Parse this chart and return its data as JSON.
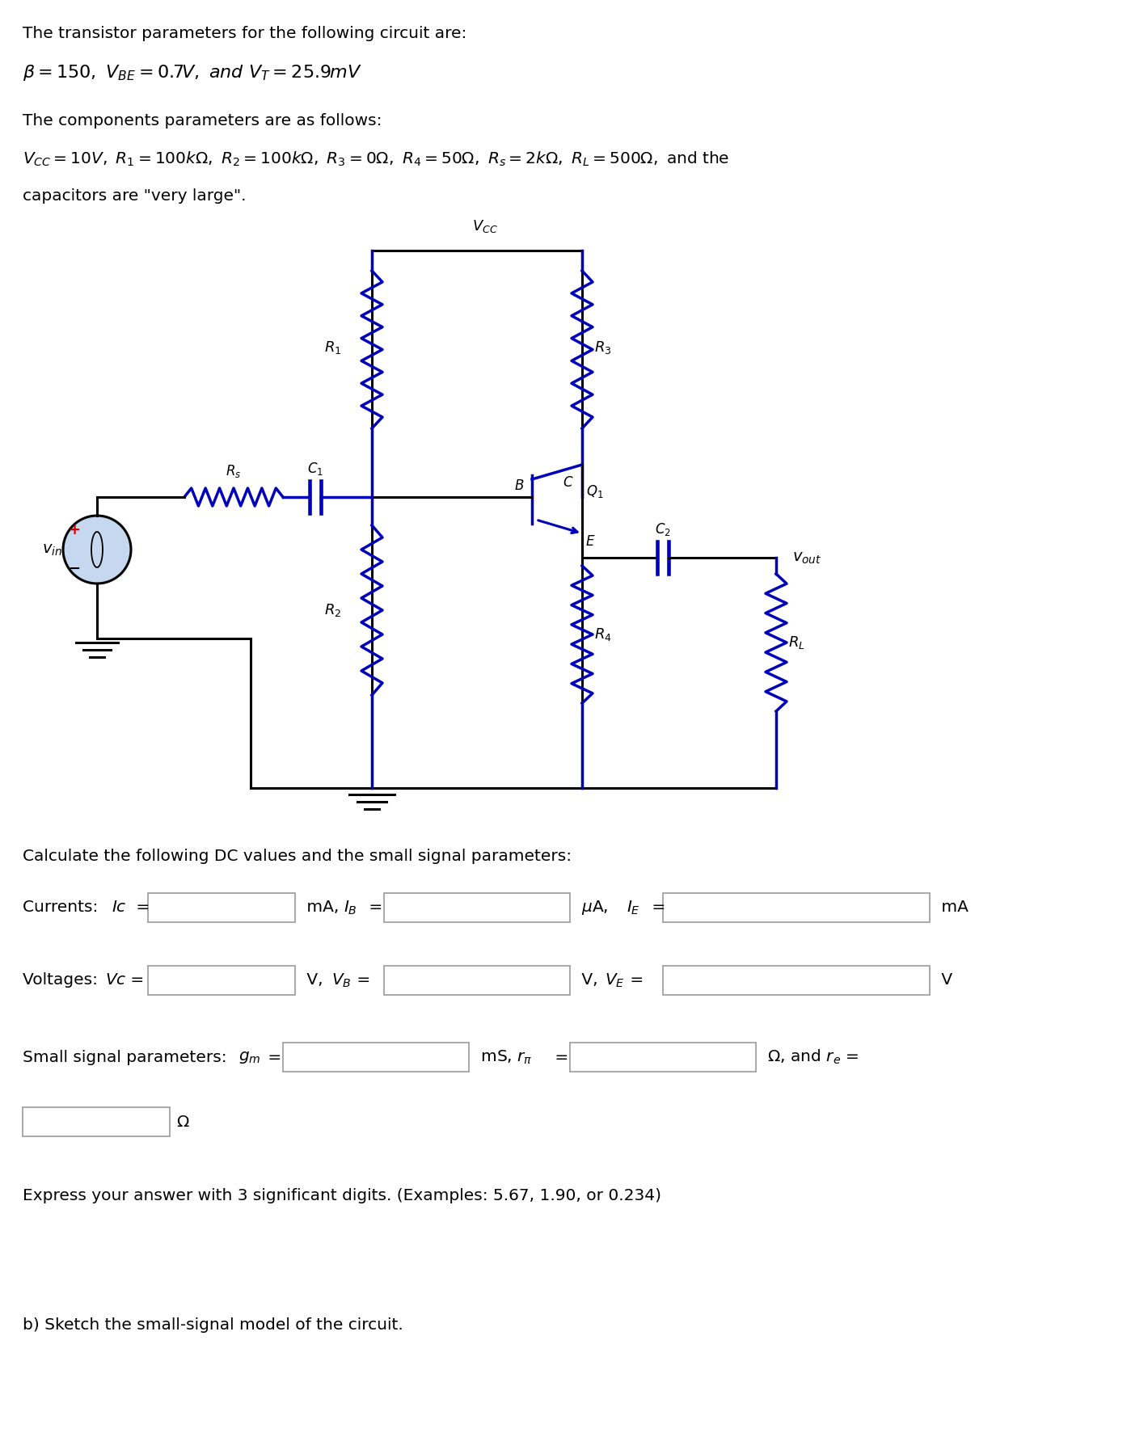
{
  "bg_color": "#ffffff",
  "text_color": "#000000",
  "blue_color": "#0000bb",
  "red_color": "#cc0000",
  "figwidth": 14.2,
  "figheight": 17.78,
  "dpi": 100,
  "line1": "The transistor parameters for the following circuit are:",
  "line3": "The components parameters are as follows:",
  "line5": "capacitors are \"very large\".",
  "calc_line": "Calculate the following DC values and the small signal parameters:",
  "express_line": "Express your answer with 3 significant digits. (Examples: 5.67, 1.90, or 0.234)",
  "part_b": "b) Sketch the small-signal model of the circuit."
}
